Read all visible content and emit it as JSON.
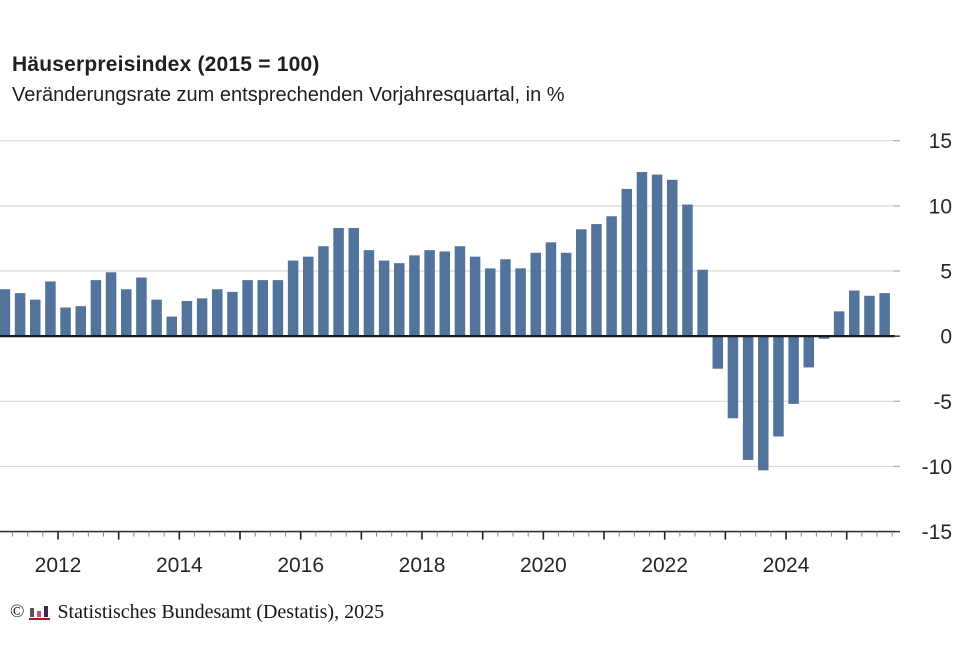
{
  "header": {
    "title": "Häuserpreisindex (2015 = 100)",
    "subtitle": "Veränderungsrate zum entsprechenden Vorjahresquartal, in %"
  },
  "footer": {
    "copyright_symbol": "©",
    "attribution": "Statistisches Bundesamt (Destatis), 2025",
    "logo": {
      "name": "destatis-mini-bar-chart-logo",
      "bar_colors": [
        "#5c5650",
        "#c4556c",
        "#41294b"
      ],
      "baseline_color": "#9e1b32"
    }
  },
  "chart_data": {
    "type": "bar",
    "title": "Häuserpreisindex (2015 = 100)",
    "subtitle": "Veränderungsrate zum entsprechenden Vorjahresquartal, in %",
    "unit": "%",
    "categories": [
      "2011-Q1",
      "2011-Q2",
      "2011-Q3",
      "2011-Q4",
      "2012-Q1",
      "2012-Q2",
      "2012-Q3",
      "2012-Q4",
      "2013-Q1",
      "2013-Q2",
      "2013-Q3",
      "2013-Q4",
      "2014-Q1",
      "2014-Q2",
      "2014-Q3",
      "2014-Q4",
      "2015-Q1",
      "2015-Q2",
      "2015-Q3",
      "2015-Q4",
      "2016-Q1",
      "2016-Q2",
      "2016-Q3",
      "2016-Q4",
      "2017-Q1",
      "2017-Q2",
      "2017-Q3",
      "2017-Q4",
      "2018-Q1",
      "2018-Q2",
      "2018-Q3",
      "2018-Q4",
      "2019-Q1",
      "2019-Q2",
      "2019-Q3",
      "2019-Q4",
      "2020-Q1",
      "2020-Q2",
      "2020-Q3",
      "2020-Q4",
      "2021-Q1",
      "2021-Q2",
      "2021-Q3",
      "2021-Q4",
      "2022-Q1",
      "2022-Q2",
      "2022-Q3",
      "2022-Q4",
      "2023-Q1",
      "2023-Q2",
      "2023-Q3",
      "2023-Q4",
      "2024-Q1",
      "2024-Q2",
      "2024-Q3",
      "2024-Q4",
      "2025-Q1",
      "2025-Q2",
      "2025-Q3"
    ],
    "values": [
      3.6,
      3.3,
      2.8,
      4.2,
      2.2,
      2.3,
      4.3,
      4.9,
      3.6,
      4.5,
      2.8,
      1.5,
      2.7,
      2.9,
      3.6,
      3.4,
      4.3,
      4.3,
      4.3,
      5.8,
      6.1,
      6.9,
      8.3,
      8.3,
      6.6,
      5.8,
      5.6,
      6.2,
      6.6,
      6.5,
      6.9,
      6.1,
      5.2,
      5.9,
      5.2,
      6.4,
      7.2,
      6.4,
      8.2,
      8.6,
      9.2,
      11.3,
      12.6,
      12.4,
      12.0,
      10.1,
      5.1,
      -2.5,
      -6.3,
      -9.5,
      -10.3,
      -7.7,
      -5.2,
      -2.4,
      -0.2,
      1.9,
      3.5,
      3.1,
      3.3
    ],
    "xlabel": "",
    "ylabel": "",
    "ylim": [
      -15,
      15
    ],
    "yticks": [
      15,
      10,
      5,
      0,
      -5,
      -10,
      -15
    ],
    "ytick_labels": [
      "15",
      "10",
      "5",
      "0",
      "-5",
      "-10",
      "-15"
    ],
    "ytick_side": "right",
    "xtick_labeled_years": [
      2012,
      2014,
      2016,
      2018,
      2020,
      2022,
      2024
    ],
    "xtick_minor": "quarters",
    "grid": true,
    "legend": "none",
    "bar_color": "#51739c",
    "grid_color": "#d9d9d9",
    "zero_line_color": "#1a1a1a",
    "axis_line_color": "#333333",
    "tick_label_color": "#262626"
  }
}
